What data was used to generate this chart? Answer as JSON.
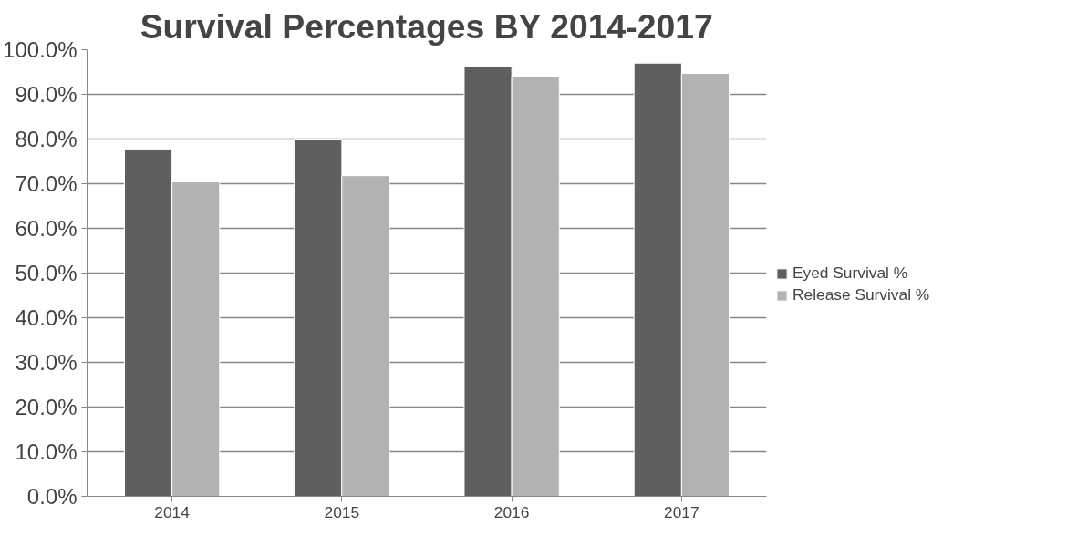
{
  "chart_data": {
    "type": "bar",
    "title": "Survival Percentages BY 2014-2017",
    "categories": [
      "2014",
      "2015",
      "2016",
      "2017"
    ],
    "series": [
      {
        "name": "Eyed Survival %",
        "color": "#5f5f5f",
        "values": [
          77.7,
          79.8,
          96.3,
          97.0
        ]
      },
      {
        "name": "Release Survival %",
        "color": "#b2b2b2",
        "values": [
          70.4,
          71.8,
          94.0,
          94.7
        ]
      }
    ],
    "ylim": [
      0,
      100
    ],
    "yticks": [
      {
        "value": 0,
        "label": "0.0%"
      },
      {
        "value": 10,
        "label": "10.0%"
      },
      {
        "value": 20,
        "label": "20.0%"
      },
      {
        "value": 30,
        "label": "30.0%"
      },
      {
        "value": 40,
        "label": "40.0%"
      },
      {
        "value": 50,
        "label": "50.0%"
      },
      {
        "value": 60,
        "label": "60.0%"
      },
      {
        "value": 70,
        "label": "70.0%"
      },
      {
        "value": 80,
        "label": "80.0%"
      },
      {
        "value": 90,
        "label": "90.0%"
      },
      {
        "value": 100,
        "label": "100.0%"
      }
    ],
    "grid": "y",
    "legend": "right"
  }
}
